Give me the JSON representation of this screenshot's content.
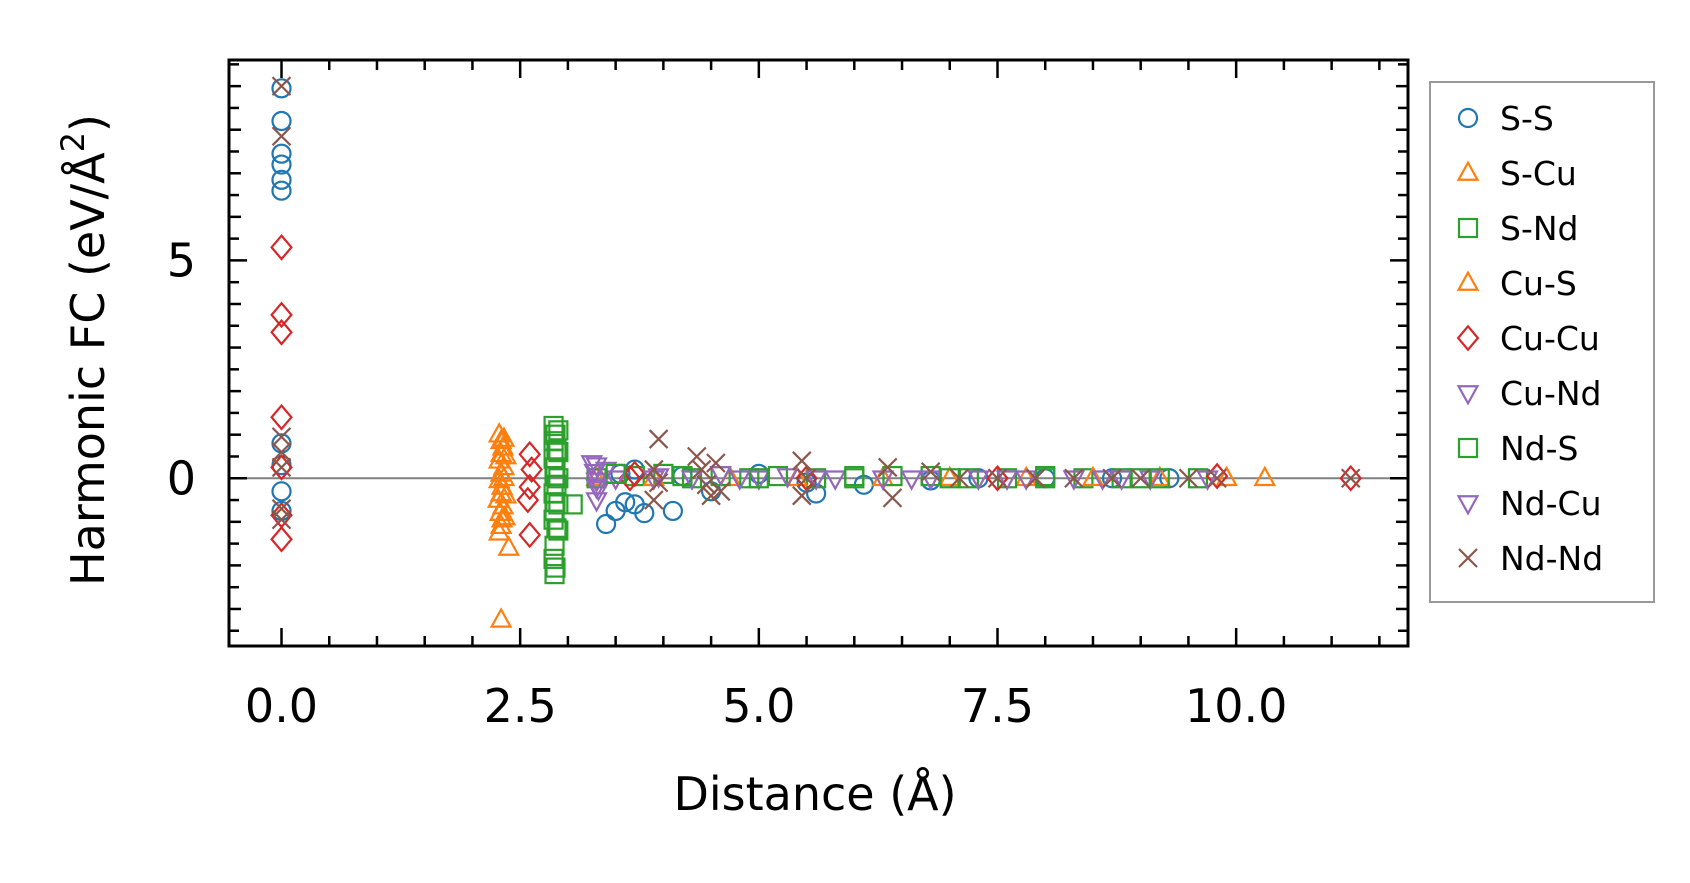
{
  "chart_data": {
    "type": "scatter",
    "title": "",
    "xlabel": "Distance (Å)",
    "ylabel": "Harmonic FC (eV/Å²)",
    "ylabel_parts": {
      "base": "Harmonic FC (eV/Å",
      "sup": "2",
      "tail": ")"
    },
    "xlim": [
      -0.55,
      11.8
    ],
    "ylim": [
      -3.85,
      9.6
    ],
    "x_ticks": [
      0.0,
      2.5,
      5.0,
      7.5,
      10.0
    ],
    "x_tick_labels": [
      "0.0",
      "2.5",
      "5.0",
      "7.5",
      "10.0"
    ],
    "y_ticks": [
      0,
      5
    ],
    "y_tick_labels": [
      "0",
      "5"
    ],
    "zero_line": 0,
    "legend_position": "outside right",
    "series": [
      {
        "name": "S-S",
        "marker": "circle",
        "color": "#1f77b4",
        "points": [
          [
            0.0,
            8.95
          ],
          [
            0.0,
            8.2
          ],
          [
            0.0,
            7.45
          ],
          [
            0.0,
            7.2
          ],
          [
            0.0,
            6.85
          ],
          [
            0.0,
            6.6
          ],
          [
            0.0,
            0.8
          ],
          [
            0.0,
            0.3
          ],
          [
            0.0,
            -0.3
          ],
          [
            0.0,
            -0.75
          ],
          [
            3.4,
            -1.05
          ],
          [
            3.5,
            -0.75
          ],
          [
            3.6,
            -0.55
          ],
          [
            3.7,
            -0.6
          ],
          [
            3.8,
            -0.8
          ],
          [
            4.1,
            -0.75
          ],
          [
            3.55,
            0.1
          ],
          [
            3.7,
            0.2
          ],
          [
            4.2,
            0.05
          ],
          [
            4.5,
            -0.3
          ],
          [
            5.0,
            0.1
          ],
          [
            5.5,
            -0.1
          ],
          [
            5.6,
            -0.35
          ],
          [
            6.1,
            -0.15
          ],
          [
            6.8,
            -0.05
          ],
          [
            7.3,
            0.0
          ],
          [
            8.0,
            0.0
          ],
          [
            8.7,
            0.0
          ],
          [
            9.3,
            0.0
          ]
        ]
      },
      {
        "name": "S-Cu",
        "marker": "triangle-up",
        "color": "#ff7f0e",
        "points": [
          [
            2.28,
            1.0
          ],
          [
            2.3,
            0.85
          ],
          [
            2.32,
            0.7
          ],
          [
            2.3,
            0.55
          ],
          [
            2.28,
            0.4
          ],
          [
            2.33,
            0.25
          ],
          [
            2.3,
            0.1
          ],
          [
            2.28,
            -0.05
          ],
          [
            2.31,
            -0.2
          ],
          [
            2.3,
            -0.35
          ],
          [
            2.27,
            -0.5
          ],
          [
            2.32,
            -0.65
          ],
          [
            2.29,
            -0.8
          ],
          [
            2.31,
            -0.95
          ],
          [
            2.3,
            -1.1
          ],
          [
            2.28,
            -1.25
          ],
          [
            2.38,
            -1.6
          ],
          [
            2.3,
            -3.25
          ],
          [
            3.3,
            0.0
          ],
          [
            4.7,
            0.0
          ],
          [
            6.3,
            0.0
          ],
          [
            7.8,
            0.0
          ],
          [
            9.2,
            0.0
          ],
          [
            10.3,
            0.0
          ]
        ]
      },
      {
        "name": "S-Nd",
        "marker": "square",
        "color": "#2ca02c",
        "points": [
          [
            2.85,
            1.2
          ],
          [
            2.87,
            1.0
          ],
          [
            2.85,
            0.85
          ],
          [
            2.88,
            0.65
          ],
          [
            2.85,
            0.45
          ],
          [
            2.87,
            0.25
          ],
          [
            2.86,
            0.05
          ],
          [
            2.88,
            -0.15
          ],
          [
            2.85,
            -0.35
          ],
          [
            2.87,
            -0.55
          ],
          [
            2.86,
            -0.75
          ],
          [
            2.85,
            -0.95
          ],
          [
            2.88,
            -1.15
          ],
          [
            2.86,
            -1.55
          ],
          [
            2.85,
            -1.85
          ],
          [
            2.87,
            -2.05
          ],
          [
            2.86,
            -2.2
          ],
          [
            3.05,
            -0.6
          ],
          [
            3.3,
            0.0
          ],
          [
            3.7,
            0.05
          ],
          [
            4.0,
            0.1
          ],
          [
            4.3,
            0.0
          ],
          [
            4.6,
            0.05
          ],
          [
            4.9,
            0.0
          ],
          [
            5.2,
            0.05
          ],
          [
            5.6,
            0.0
          ],
          [
            6.0,
            0.05
          ],
          [
            6.4,
            0.05
          ],
          [
            6.8,
            0.05
          ],
          [
            7.2,
            0.0
          ],
          [
            7.6,
            0.0
          ],
          [
            8.0,
            0.05
          ],
          [
            8.4,
            0.0
          ],
          [
            8.8,
            0.0
          ],
          [
            9.2,
            0.0
          ],
          [
            9.6,
            0.0
          ]
        ]
      },
      {
        "name": "Cu-S",
        "marker": "triangle-up",
        "color": "#ff7f0e",
        "points": [
          [
            2.33,
            0.9
          ],
          [
            2.35,
            0.5
          ],
          [
            2.33,
            0.0
          ],
          [
            2.35,
            -0.4
          ],
          [
            2.34,
            -0.9
          ],
          [
            3.9,
            0.0
          ],
          [
            5.4,
            0.0
          ],
          [
            7.0,
            0.0
          ],
          [
            8.5,
            0.0
          ],
          [
            9.9,
            0.0
          ]
        ]
      },
      {
        "name": "Cu-Cu",
        "marker": "diamond",
        "color": "#d62728",
        "points": [
          [
            0.0,
            5.3
          ],
          [
            0.0,
            3.75
          ],
          [
            0.0,
            3.35
          ],
          [
            0.0,
            1.4
          ],
          [
            0.0,
            0.25
          ],
          [
            0.0,
            -0.85
          ],
          [
            0.0,
            -1.4
          ],
          [
            2.6,
            0.55
          ],
          [
            2.62,
            0.2
          ],
          [
            2.6,
            -0.2
          ],
          [
            2.58,
            -0.5
          ],
          [
            2.6,
            -1.3
          ],
          [
            3.65,
            0.0
          ],
          [
            3.7,
            0.1
          ],
          [
            5.5,
            0.0
          ],
          [
            7.5,
            0.0
          ],
          [
            9.8,
            0.05
          ],
          [
            11.2,
            0.0
          ]
        ]
      },
      {
        "name": "Cu-Nd",
        "marker": "triangle-down",
        "color": "#9467bd",
        "points": [
          [
            3.25,
            0.35
          ],
          [
            3.28,
            0.15
          ],
          [
            3.3,
            -0.05
          ],
          [
            3.32,
            -0.25
          ],
          [
            3.3,
            -0.5
          ],
          [
            3.4,
            0.2
          ],
          [
            3.5,
            0.0
          ],
          [
            3.9,
            0.0
          ],
          [
            4.3,
            0.0
          ],
          [
            4.6,
            0.1
          ],
          [
            5.0,
            0.0
          ],
          [
            5.3,
            0.05
          ],
          [
            5.8,
            0.0
          ],
          [
            6.3,
            0.0
          ],
          [
            6.8,
            0.0
          ],
          [
            7.3,
            0.0
          ],
          [
            7.8,
            0.0
          ],
          [
            8.3,
            0.0
          ],
          [
            8.8,
            0.0
          ],
          [
            9.1,
            0.0
          ],
          [
            9.7,
            0.0
          ]
        ]
      },
      {
        "name": "Nd-S",
        "marker": "square",
        "color": "#2ca02c",
        "points": [
          [
            2.9,
            1.1
          ],
          [
            2.9,
            0.6
          ],
          [
            2.9,
            0.0
          ],
          [
            2.9,
            -0.6
          ],
          [
            2.9,
            -1.2
          ],
          [
            3.5,
            0.1
          ],
          [
            4.2,
            0.05
          ],
          [
            5.0,
            0.0
          ],
          [
            6.0,
            0.0
          ],
          [
            7.0,
            0.0
          ],
          [
            8.0,
            0.0
          ],
          [
            9.0,
            0.0
          ]
        ]
      },
      {
        "name": "Nd-Cu",
        "marker": "triangle-down",
        "color": "#9467bd",
        "points": [
          [
            3.3,
            0.3
          ],
          [
            3.3,
            -0.2
          ],
          [
            3.95,
            0.05
          ],
          [
            4.8,
            0.0
          ],
          [
            5.6,
            0.0
          ],
          [
            6.6,
            0.0
          ],
          [
            7.6,
            0.0
          ],
          [
            8.6,
            0.0
          ]
        ]
      },
      {
        "name": "Nd-Nd",
        "marker": "cross",
        "color": "#8c564b",
        "points": [
          [
            0.0,
            9.0
          ],
          [
            0.0,
            7.85
          ],
          [
            0.0,
            0.95
          ],
          [
            0.0,
            0.6
          ],
          [
            0.0,
            0.25
          ],
          [
            0.0,
            -0.7
          ],
          [
            0.0,
            -0.95
          ],
          [
            3.95,
            0.9
          ],
          [
            3.9,
            0.2
          ],
          [
            3.95,
            -0.1
          ],
          [
            3.9,
            -0.5
          ],
          [
            4.35,
            0.5
          ],
          [
            4.4,
            0.2
          ],
          [
            4.45,
            -0.15
          ],
          [
            4.5,
            -0.4
          ],
          [
            4.55,
            0.35
          ],
          [
            4.6,
            -0.3
          ],
          [
            5.45,
            0.4
          ],
          [
            5.5,
            0.0
          ],
          [
            5.45,
            -0.4
          ],
          [
            6.35,
            0.25
          ],
          [
            6.4,
            -0.45
          ],
          [
            6.8,
            0.15
          ],
          [
            7.1,
            0.0
          ],
          [
            7.5,
            0.0
          ],
          [
            7.9,
            0.0
          ],
          [
            8.3,
            0.0
          ],
          [
            8.7,
            0.0
          ],
          [
            9.0,
            0.0
          ],
          [
            9.5,
            0.0
          ],
          [
            9.8,
            0.0
          ],
          [
            11.2,
            0.0
          ]
        ]
      }
    ]
  },
  "colors": {
    "zero_line": "#808080",
    "axis": "#000000",
    "legend_border": "#999999"
  }
}
